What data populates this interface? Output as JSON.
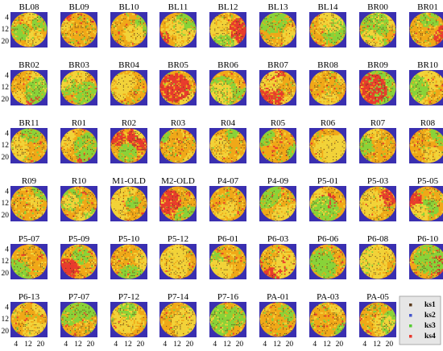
{
  "chart_data": {
    "type": "heatmap",
    "layout": {
      "rows": 6,
      "cols": 9
    },
    "grid_size": 24,
    "x_ticks": [
      4,
      12,
      20
    ],
    "y_ticks": [
      4,
      12,
      20
    ],
    "colors": {
      "background": "#3a2fb0",
      "base_fill": "#f0a818",
      "yellow_fill": "#f2d43a",
      "green_fill": "#86d43a",
      "red_fill": "#e8392e",
      "dot_dark": "#5a3a1c"
    },
    "legend": {
      "placement": "bottom-right",
      "entries": [
        {
          "name": "ks1",
          "color": "#5a3a1c"
        },
        {
          "name": "ks2",
          "color": "#4455cc"
        },
        {
          "name": "ks3",
          "color": "#55cc33"
        },
        {
          "name": "ks4",
          "color": "#e8392e"
        }
      ]
    },
    "panels": [
      {
        "title": "BL08",
        "show_xticks": false,
        "show_yticks": true
      },
      {
        "title": "BL09",
        "show_xticks": false,
        "show_yticks": false
      },
      {
        "title": "BL10",
        "show_xticks": false,
        "show_yticks": false
      },
      {
        "title": "BL11",
        "show_xticks": false,
        "show_yticks": false
      },
      {
        "title": "BL12",
        "show_xticks": false,
        "show_yticks": false
      },
      {
        "title": "BL13",
        "show_xticks": false,
        "show_yticks": false
      },
      {
        "title": "BL14",
        "show_xticks": false,
        "show_yticks": false
      },
      {
        "title": "BR00",
        "show_xticks": false,
        "show_yticks": false
      },
      {
        "title": "BR01",
        "show_xticks": false,
        "show_yticks": false
      },
      {
        "title": "BR02",
        "show_xticks": false,
        "show_yticks": true
      },
      {
        "title": "BR03",
        "show_xticks": false,
        "show_yticks": false
      },
      {
        "title": "BR04",
        "show_xticks": false,
        "show_yticks": false
      },
      {
        "title": "BR05",
        "show_xticks": false,
        "show_yticks": false
      },
      {
        "title": "BR06",
        "show_xticks": false,
        "show_yticks": false
      },
      {
        "title": "BR07",
        "show_xticks": false,
        "show_yticks": false
      },
      {
        "title": "BR08",
        "show_xticks": false,
        "show_yticks": false
      },
      {
        "title": "BR09",
        "show_xticks": false,
        "show_yticks": false
      },
      {
        "title": "BR10",
        "show_xticks": false,
        "show_yticks": false
      },
      {
        "title": "BR11",
        "show_xticks": false,
        "show_yticks": true
      },
      {
        "title": "R01",
        "show_xticks": false,
        "show_yticks": false
      },
      {
        "title": "R02",
        "show_xticks": false,
        "show_yticks": false
      },
      {
        "title": "R03",
        "show_xticks": false,
        "show_yticks": false
      },
      {
        "title": "R04",
        "show_xticks": false,
        "show_yticks": false
      },
      {
        "title": "R05",
        "show_xticks": false,
        "show_yticks": false
      },
      {
        "title": "R06",
        "show_xticks": false,
        "show_yticks": false
      },
      {
        "title": "R07",
        "show_xticks": false,
        "show_yticks": false
      },
      {
        "title": "R08",
        "show_xticks": false,
        "show_yticks": false
      },
      {
        "title": "R09",
        "show_xticks": false,
        "show_yticks": true
      },
      {
        "title": "R10",
        "show_xticks": false,
        "show_yticks": false
      },
      {
        "title": "M1-OLD",
        "show_xticks": false,
        "show_yticks": false
      },
      {
        "title": "M2-OLD",
        "show_xticks": false,
        "show_yticks": false
      },
      {
        "title": "P4-07",
        "show_xticks": false,
        "show_yticks": false
      },
      {
        "title": "P4-09",
        "show_xticks": false,
        "show_yticks": false
      },
      {
        "title": "P5-01",
        "show_xticks": false,
        "show_yticks": false
      },
      {
        "title": "P5-03",
        "show_xticks": false,
        "show_yticks": false
      },
      {
        "title": "P5-05",
        "show_xticks": false,
        "show_yticks": false
      },
      {
        "title": "P5-07",
        "show_xticks": false,
        "show_yticks": true
      },
      {
        "title": "P5-09",
        "show_xticks": false,
        "show_yticks": false
      },
      {
        "title": "P5-10",
        "show_xticks": false,
        "show_yticks": false
      },
      {
        "title": "P5-12",
        "show_xticks": false,
        "show_yticks": false
      },
      {
        "title": "P6-01",
        "show_xticks": false,
        "show_yticks": false
      },
      {
        "title": "P6-03",
        "show_xticks": false,
        "show_yticks": false
      },
      {
        "title": "P6-06",
        "show_xticks": false,
        "show_yticks": false
      },
      {
        "title": "P6-08",
        "show_xticks": false,
        "show_yticks": false
      },
      {
        "title": "P6-10",
        "show_xticks": false,
        "show_yticks": false
      },
      {
        "title": "P6-13",
        "show_xticks": true,
        "show_yticks": true
      },
      {
        "title": "P7-07",
        "show_xticks": true,
        "show_yticks": false
      },
      {
        "title": "P7-12",
        "show_xticks": true,
        "show_yticks": false
      },
      {
        "title": "P7-14",
        "show_xticks": true,
        "show_yticks": false
      },
      {
        "title": "P7-16",
        "show_xticks": true,
        "show_yticks": false
      },
      {
        "title": "PA-01",
        "show_xticks": true,
        "show_yticks": false
      },
      {
        "title": "PA-03",
        "show_xticks": true,
        "show_yticks": false
      },
      {
        "title": "PA-05",
        "show_xticks": true,
        "show_yticks": false
      }
    ]
  }
}
